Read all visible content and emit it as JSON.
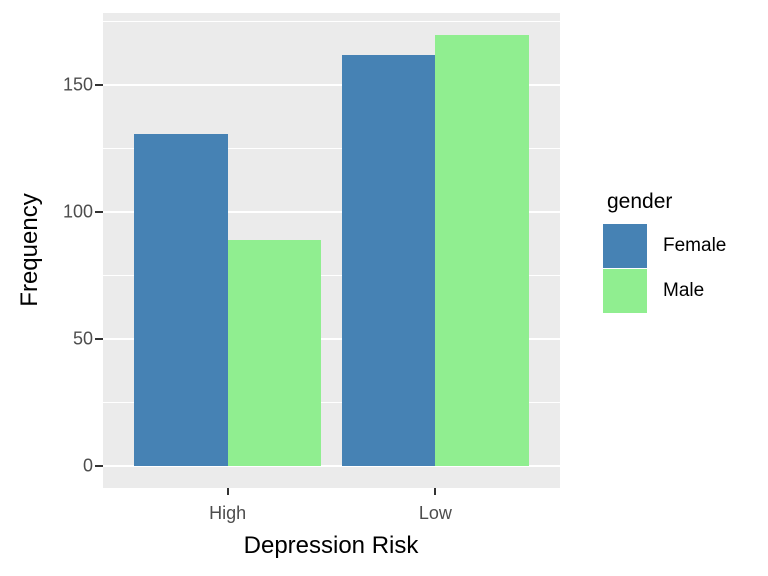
{
  "chart_data": {
    "type": "bar",
    "style": "ggplot2-grouped-dodge",
    "title": "",
    "xlabel": "Depression Risk",
    "ylabel": "Frequency",
    "categories": [
      "High",
      "Low"
    ],
    "series": [
      {
        "name": "Female",
        "color": "#4682B4",
        "values": [
          131,
          162
        ]
      },
      {
        "name": "Male",
        "color": "#90EE90",
        "values": [
          89,
          170
        ]
      }
    ],
    "y_major_ticks": [
      0,
      50,
      100,
      150
    ],
    "y_tick_labels": [
      "0",
      "50",
      "100",
      "150"
    ],
    "y_minor_ticks": [
      25,
      75,
      125,
      175
    ],
    "ylim": [
      -8.5,
      178.5
    ],
    "grid": "major-and-minor",
    "legend_position": "right",
    "panel_background": "#EBEBEB",
    "grid_color": "#FFFFFF",
    "tick_label_color": "#4D4D4D",
    "axis_title_color": "#000000"
  },
  "axes": {
    "x_title": "Depression Risk",
    "y_title": "Frequency"
  },
  "legend": {
    "title": "gender",
    "items": [
      {
        "label": "Female",
        "color": "#4682B4"
      },
      {
        "label": "Male",
        "color": "#90EE90"
      }
    ]
  }
}
